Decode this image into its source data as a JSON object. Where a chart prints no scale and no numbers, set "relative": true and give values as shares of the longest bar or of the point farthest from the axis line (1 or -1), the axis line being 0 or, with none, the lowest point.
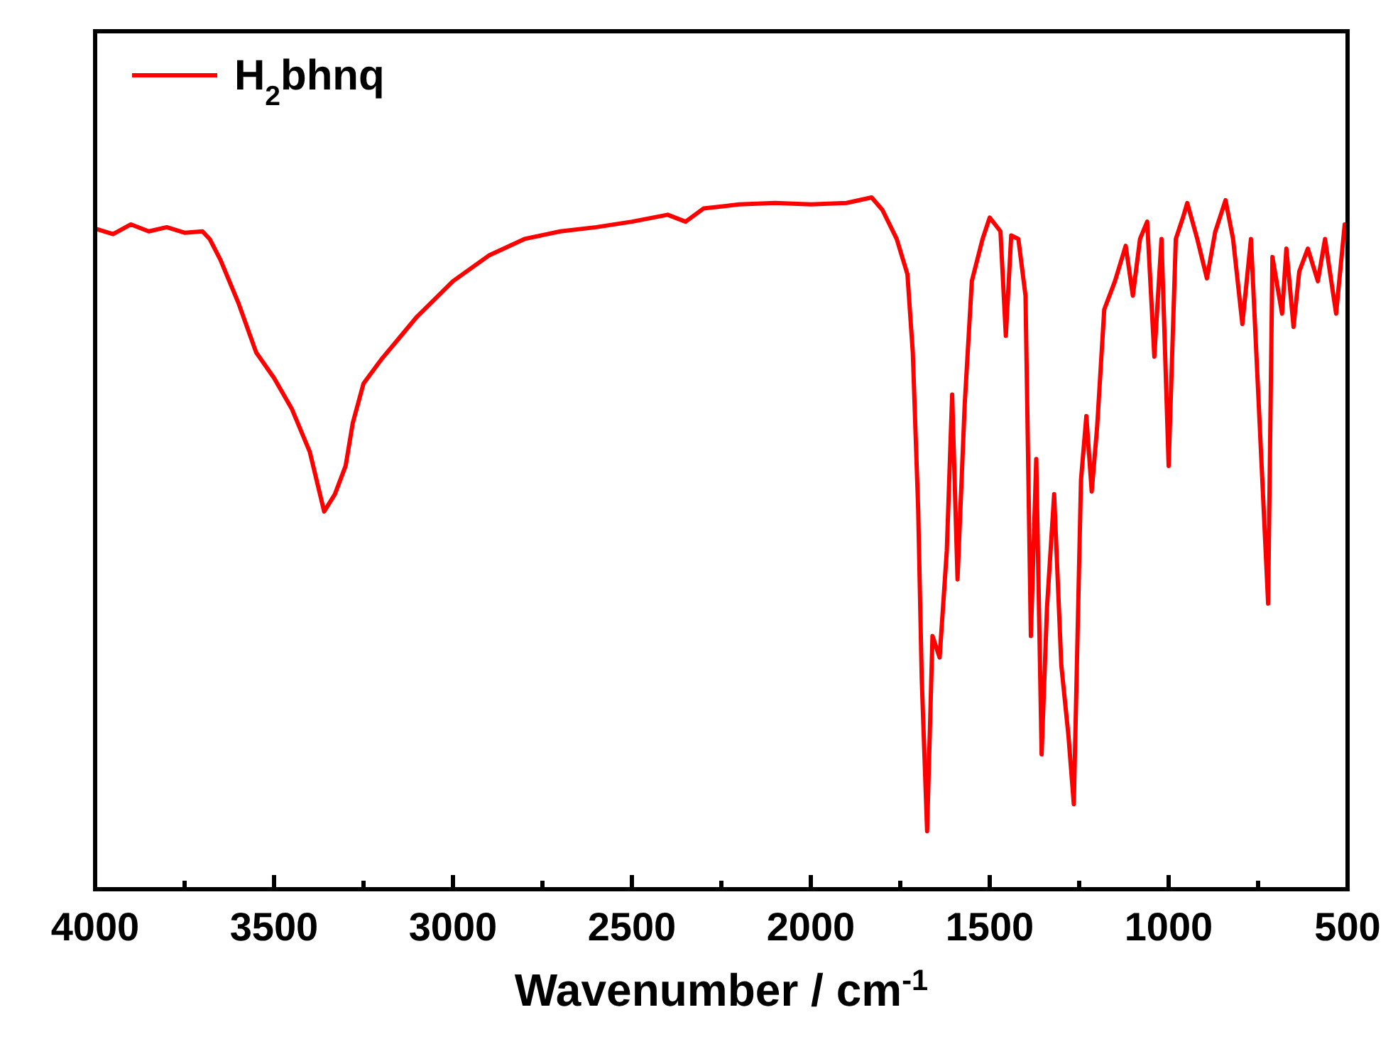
{
  "chart_data": {
    "type": "line",
    "xlabel": "Wavenumber / cm$^{-1}$",
    "relative": true,
    "tick_labels": "x",
    "legend": "top left",
    "line_style": "solid",
    "xlim": [
      4000,
      500
    ],
    "xticks": [
      4000,
      {
        "value": 3750,
        "label": null
      },
      3500,
      {
        "value": 3250,
        "label": null
      },
      3000,
      {
        "value": 2750,
        "label": null
      },
      2500,
      {
        "value": 2250,
        "label": null
      },
      2000,
      {
        "value": 1750,
        "label": null
      },
      1500,
      {
        "value": 1250,
        "label": null
      },
      1000,
      {
        "value": 750,
        "label": null
      },
      500
    ],
    "series": [
      {
        "name": "H$_{2}$bhnq",
        "color": "#ff0000",
        "x": [
          4000,
          3950,
          3900,
          3850,
          3800,
          3750,
          3700,
          3680,
          3650,
          3600,
          3550,
          3500,
          3450,
          3400,
          3360,
          3330,
          3300,
          3280,
          3250,
          3200,
          3150,
          3100,
          3000,
          2900,
          2800,
          2700,
          2600,
          2500,
          2400,
          2350,
          2300,
          2200,
          2100,
          2000,
          1900,
          1830,
          1800,
          1760,
          1730,
          1715,
          1700,
          1690,
          1675,
          1660,
          1640,
          1620,
          1605,
          1590,
          1570,
          1550,
          1520,
          1500,
          1470,
          1455,
          1440,
          1420,
          1400,
          1385,
          1370,
          1355,
          1340,
          1320,
          1300,
          1280,
          1265,
          1245,
          1230,
          1215,
          1200,
          1180,
          1150,
          1120,
          1100,
          1080,
          1060,
          1040,
          1020,
          1000,
          980,
          960,
          948,
          920,
          893,
          870,
          841,
          820,
          794,
          770,
          722,
          710,
          683,
          671,
          651,
          635,
          611,
          583,
          563,
          532,
          508,
          500
        ],
        "values": [
          0.955,
          0.947,
          0.961,
          0.951,
          0.957,
          0.949,
          0.951,
          0.94,
          0.91,
          0.848,
          0.776,
          0.739,
          0.694,
          0.632,
          0.546,
          0.571,
          0.612,
          0.674,
          0.731,
          0.766,
          0.797,
          0.828,
          0.879,
          0.916,
          0.94,
          0.951,
          0.957,
          0.965,
          0.975,
          0.965,
          0.984,
          0.99,
          0.992,
          0.99,
          0.992,
          1,
          0.982,
          0.94,
          0.889,
          0.776,
          0.55,
          0.304,
          0.084,
          0.366,
          0.335,
          0.489,
          0.715,
          0.448,
          0.7,
          0.879,
          0.94,
          0.971,
          0.951,
          0.8,
          0.945,
          0.94,
          0.858,
          0.366,
          0.622,
          0.195,
          0.407,
          0.571,
          0.324,
          0.222,
          0.123,
          0.591,
          0.684,
          0.575,
          0.667,
          0.838,
          0.879,
          0.93,
          0.858,
          0.94,
          0.965,
          0.77,
          0.94,
          0.612,
          0.94,
          0.971,
          0.992,
          0.94,
          0.883,
          0.95,
          0.996,
          0.94,
          0.817,
          0.94,
          0.413,
          0.914,
          0.832,
          0.926,
          0.813,
          0.893,
          0.926,
          0.879,
          0.94,
          0.832,
          0.961,
          0.94
        ]
      }
    ]
  }
}
